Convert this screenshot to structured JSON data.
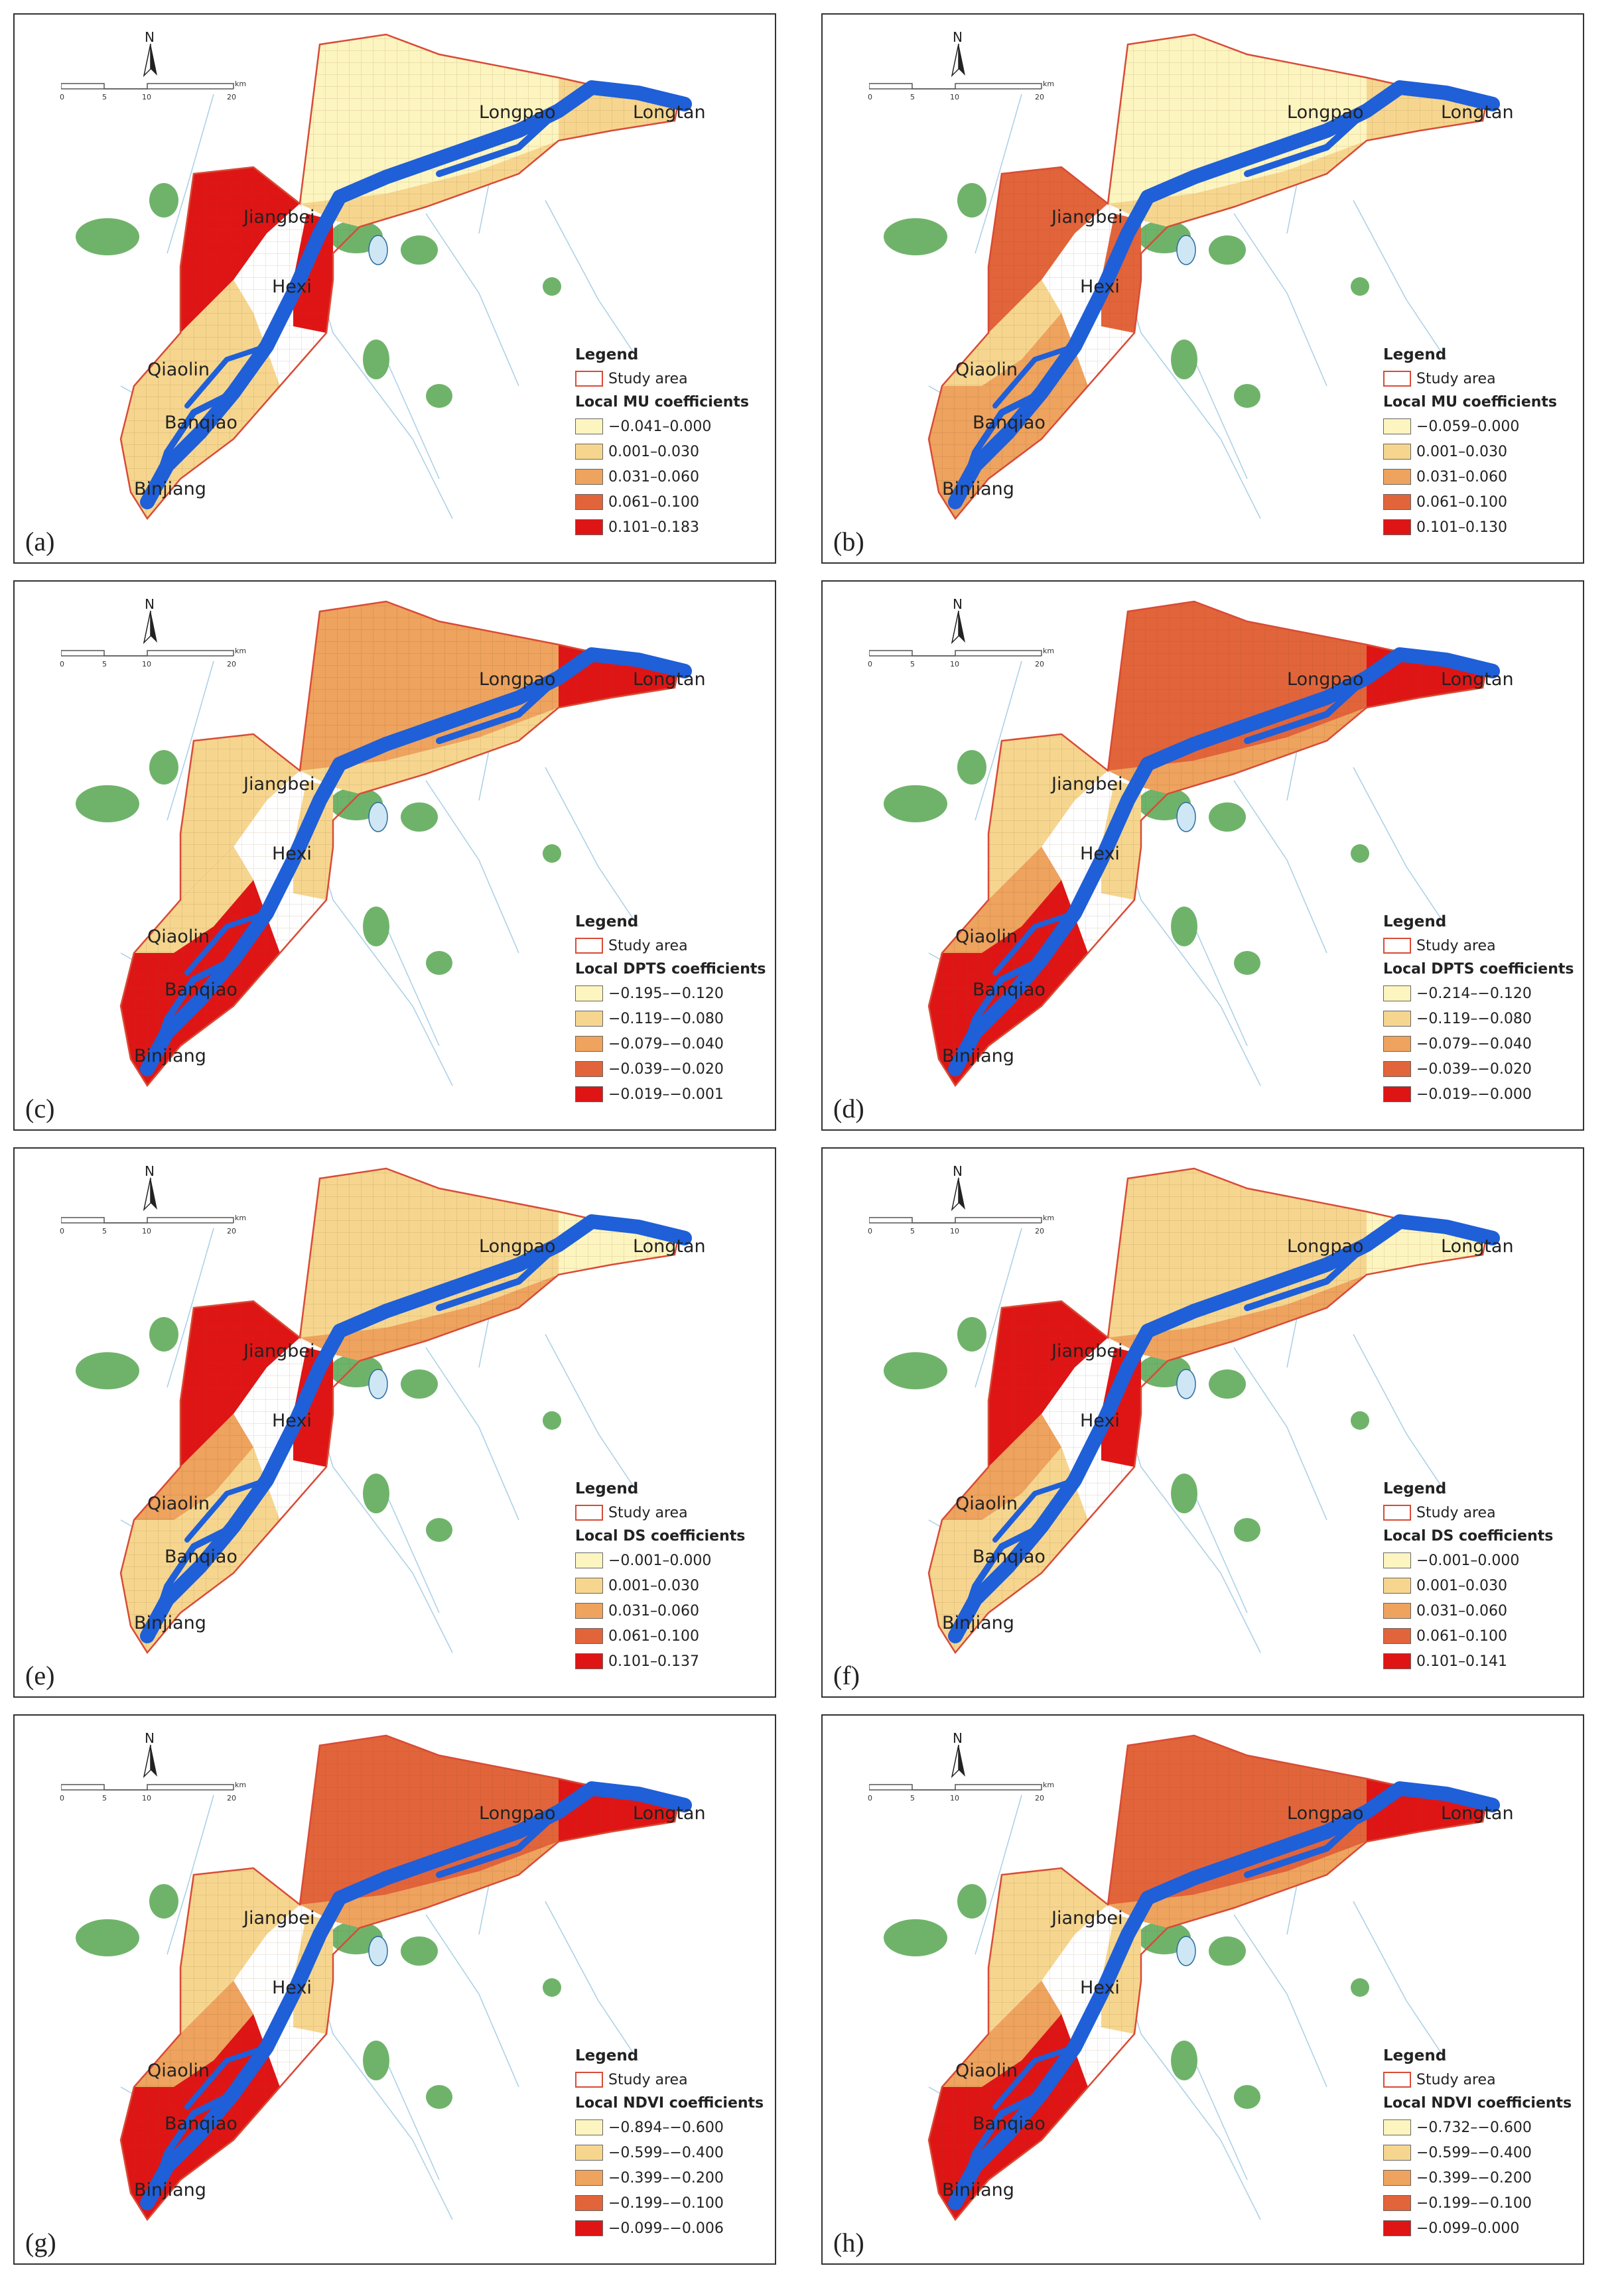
{
  "common": {
    "place_names": [
      "Longpao",
      "Longtan",
      "Jiangbei",
      "Hexi",
      "Qiaolin",
      "Banqiao",
      "Binjiang"
    ],
    "legend_title": "Legend",
    "study_area_label": "Study area",
    "north_label": "N",
    "scale_ticks": [
      "0",
      "5",
      "10",
      "20"
    ],
    "scale_unit": "km"
  },
  "colors": {
    "class1": "#fdf5c0",
    "class2": "#f6d68f",
    "class3": "#eea35e",
    "class4": "#e2643a",
    "class5": "#df1515",
    "river": "#1f5fd8",
    "green": "#6fb36b",
    "boundary": "#333333",
    "study_outline": "#d84b36"
  },
  "panels": [
    {
      "label": "(a)",
      "legend_subtitle": "Local MU coefficients",
      "classes": [
        "−0.041–0.000",
        "0.001–0.030",
        "0.031–0.060",
        "0.061–0.100",
        "0.101–0.183"
      ]
    },
    {
      "label": "(b)",
      "legend_subtitle": "Local MU coefficients",
      "classes": [
        "−0.059–0.000",
        "0.001–0.030",
        "0.031–0.060",
        "0.061–0.100",
        "0.101–0.130"
      ]
    },
    {
      "label": "(c)",
      "legend_subtitle": "Local DPTS coefficients",
      "classes": [
        "−0.195–−0.120",
        "−0.119–−0.080",
        "−0.079–−0.040",
        "−0.039–−0.020",
        "−0.019–−0.001"
      ]
    },
    {
      "label": "(d)",
      "legend_subtitle": "Local DPTS coefficients",
      "classes": [
        "−0.214–−0.120",
        "−0.119–−0.080",
        "−0.079–−0.040",
        "−0.039–−0.020",
        "−0.019–−0.000"
      ]
    },
    {
      "label": "(e)",
      "legend_subtitle": "Local DS coefficients",
      "classes": [
        "−0.001–0.000",
        "0.001–0.030",
        "0.031–0.060",
        "0.061–0.100",
        "0.101–0.137"
      ]
    },
    {
      "label": "(f)",
      "legend_subtitle": "Local DS coefficients",
      "classes": [
        "−0.001–0.000",
        "0.001–0.030",
        "0.031–0.060",
        "0.061–0.100",
        "0.101–0.141"
      ]
    },
    {
      "label": "(g)",
      "legend_subtitle": "Local NDVI coefficients",
      "classes": [
        "−0.894–−0.600",
        "−0.599–−0.400",
        "−0.399–−0.200",
        "−0.199–−0.100",
        "−0.099–−0.006"
      ]
    },
    {
      "label": "(h)",
      "legend_subtitle": "Local NDVI coefficients",
      "classes": [
        "−0.732–−0.600",
        "−0.599–−0.400",
        "−0.399–−0.200",
        "−0.199–−0.100",
        "−0.099–0.000"
      ]
    }
  ]
}
